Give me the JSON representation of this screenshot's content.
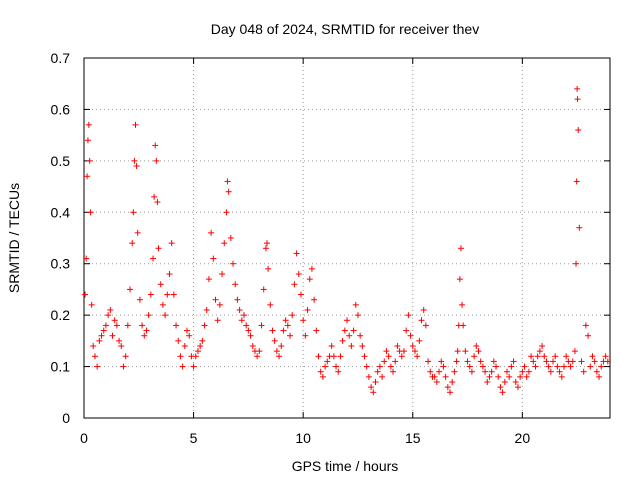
{
  "chart_data": {
    "type": "scatter",
    "title": "Day 048 of 2024, SRMTID for receiver thev",
    "xlabel": "GPS time / hours",
    "ylabel": "SRMTID / TECUs",
    "xlim": [
      0,
      24
    ],
    "ylim": [
      0,
      0.7
    ],
    "xticks": [
      0,
      5,
      10,
      15,
      20
    ],
    "yticks": [
      0,
      0.1,
      0.2,
      0.3,
      0.4,
      0.5,
      0.6,
      0.7
    ],
    "xtick_labels": [
      "0",
      "5",
      "10",
      "15",
      "20"
    ],
    "ytick_labels": [
      "0",
      "0.1",
      "0.2",
      "0.3",
      "0.4",
      "0.5",
      "0.6",
      "0.7"
    ],
    "grid": true,
    "marker": "plus",
    "color": "#ff0000",
    "series": [
      {
        "name": "SRMTID",
        "points": [
          [
            0.05,
            0.24
          ],
          [
            0.1,
            0.31
          ],
          [
            0.14,
            0.47
          ],
          [
            0.18,
            0.54
          ],
          [
            0.22,
            0.57
          ],
          [
            0.26,
            0.5
          ],
          [
            0.3,
            0.4
          ],
          [
            0.35,
            0.22
          ],
          [
            0.42,
            0.14
          ],
          [
            0.5,
            0.12
          ],
          [
            0.6,
            0.1
          ],
          [
            0.7,
            0.15
          ],
          [
            0.8,
            0.16
          ],
          [
            0.9,
            0.17
          ],
          [
            1.0,
            0.18
          ],
          [
            1.1,
            0.2
          ],
          [
            1.2,
            0.21
          ],
          [
            1.3,
            0.16
          ],
          [
            1.4,
            0.19
          ],
          [
            1.5,
            0.18
          ],
          [
            1.6,
            0.15
          ],
          [
            1.7,
            0.14
          ],
          [
            1.8,
            0.1
          ],
          [
            1.9,
            0.12
          ],
          [
            2.0,
            0.18
          ],
          [
            2.1,
            0.25
          ],
          [
            2.2,
            0.34
          ],
          [
            2.25,
            0.4
          ],
          [
            2.3,
            0.5
          ],
          [
            2.35,
            0.57
          ],
          [
            2.4,
            0.49
          ],
          [
            2.45,
            0.36
          ],
          [
            2.55,
            0.23
          ],
          [
            2.65,
            0.18
          ],
          [
            2.75,
            0.16
          ],
          [
            2.85,
            0.17
          ],
          [
            2.95,
            0.2
          ],
          [
            3.05,
            0.24
          ],
          [
            3.15,
            0.31
          ],
          [
            3.2,
            0.43
          ],
          [
            3.25,
            0.53
          ],
          [
            3.3,
            0.5
          ],
          [
            3.35,
            0.42
          ],
          [
            3.4,
            0.33
          ],
          [
            3.5,
            0.26
          ],
          [
            3.6,
            0.22
          ],
          [
            3.7,
            0.2
          ],
          [
            3.8,
            0.24
          ],
          [
            3.9,
            0.28
          ],
          [
            4.0,
            0.34
          ],
          [
            4.1,
            0.24
          ],
          [
            4.2,
            0.18
          ],
          [
            4.3,
            0.15
          ],
          [
            4.4,
            0.12
          ],
          [
            4.5,
            0.1
          ],
          [
            4.6,
            0.14
          ],
          [
            4.7,
            0.17
          ],
          [
            4.8,
            0.16
          ],
          [
            4.9,
            0.12
          ],
          [
            5.0,
            0.1
          ],
          [
            5.1,
            0.12
          ],
          [
            5.2,
            0.13
          ],
          [
            5.3,
            0.14
          ],
          [
            5.4,
            0.15
          ],
          [
            5.5,
            0.18
          ],
          [
            5.6,
            0.21
          ],
          [
            5.7,
            0.27
          ],
          [
            5.8,
            0.36
          ],
          [
            5.9,
            0.31
          ],
          [
            6.0,
            0.23
          ],
          [
            6.1,
            0.19
          ],
          [
            6.2,
            0.22
          ],
          [
            6.3,
            0.28
          ],
          [
            6.4,
            0.34
          ],
          [
            6.5,
            0.4
          ],
          [
            6.55,
            0.46
          ],
          [
            6.6,
            0.44
          ],
          [
            6.7,
            0.35
          ],
          [
            6.8,
            0.3
          ],
          [
            6.9,
            0.26
          ],
          [
            7.0,
            0.23
          ],
          [
            7.1,
            0.21
          ],
          [
            7.2,
            0.19
          ],
          [
            7.3,
            0.2
          ],
          [
            7.4,
            0.18
          ],
          [
            7.5,
            0.17
          ],
          [
            7.6,
            0.16
          ],
          [
            7.7,
            0.14
          ],
          [
            7.8,
            0.13
          ],
          [
            7.9,
            0.12
          ],
          [
            8.0,
            0.13
          ],
          [
            8.1,
            0.18
          ],
          [
            8.2,
            0.25
          ],
          [
            8.3,
            0.33
          ],
          [
            8.35,
            0.34
          ],
          [
            8.4,
            0.29
          ],
          [
            8.5,
            0.22
          ],
          [
            8.6,
            0.17
          ],
          [
            8.7,
            0.15
          ],
          [
            8.8,
            0.13
          ],
          [
            8.9,
            0.12
          ],
          [
            9.0,
            0.14
          ],
          [
            9.1,
            0.17
          ],
          [
            9.2,
            0.19
          ],
          [
            9.3,
            0.18
          ],
          [
            9.4,
            0.16
          ],
          [
            9.5,
            0.2
          ],
          [
            9.6,
            0.26
          ],
          [
            9.7,
            0.32
          ],
          [
            9.8,
            0.28
          ],
          [
            9.9,
            0.24
          ],
          [
            10.0,
            0.19
          ],
          [
            10.1,
            0.16
          ],
          [
            10.2,
            0.21
          ],
          [
            10.3,
            0.27
          ],
          [
            10.4,
            0.29
          ],
          [
            10.5,
            0.23
          ],
          [
            10.6,
            0.17
          ],
          [
            10.7,
            0.12
          ],
          [
            10.8,
            0.09
          ],
          [
            10.9,
            0.08
          ],
          [
            11.0,
            0.1
          ],
          [
            11.1,
            0.11
          ],
          [
            11.2,
            0.12
          ],
          [
            11.3,
            0.14
          ],
          [
            11.4,
            0.12
          ],
          [
            11.5,
            0.1
          ],
          [
            11.6,
            0.09
          ],
          [
            11.7,
            0.12
          ],
          [
            11.8,
            0.15
          ],
          [
            11.9,
            0.17
          ],
          [
            12.0,
            0.19
          ],
          [
            12.1,
            0.16
          ],
          [
            12.2,
            0.14
          ],
          [
            12.3,
            0.17
          ],
          [
            12.4,
            0.22
          ],
          [
            12.5,
            0.2
          ],
          [
            12.6,
            0.16
          ],
          [
            12.7,
            0.14
          ],
          [
            12.8,
            0.12
          ],
          [
            12.9,
            0.1
          ],
          [
            13.0,
            0.08
          ],
          [
            13.1,
            0.06
          ],
          [
            13.2,
            0.05
          ],
          [
            13.3,
            0.07
          ],
          [
            13.4,
            0.09
          ],
          [
            13.5,
            0.1
          ],
          [
            13.6,
            0.08
          ],
          [
            13.7,
            0.11
          ],
          [
            13.8,
            0.13
          ],
          [
            13.9,
            0.12
          ],
          [
            14.0,
            0.1
          ],
          [
            14.1,
            0.09
          ],
          [
            14.2,
            0.11
          ],
          [
            14.3,
            0.14
          ],
          [
            14.4,
            0.13
          ],
          [
            14.5,
            0.12
          ],
          [
            14.6,
            0.13
          ],
          [
            14.7,
            0.17
          ],
          [
            14.8,
            0.2
          ],
          [
            14.9,
            0.16
          ],
          [
            15.0,
            0.14
          ],
          [
            15.1,
            0.13
          ],
          [
            15.2,
            0.12
          ],
          [
            15.3,
            0.15
          ],
          [
            15.4,
            0.19
          ],
          [
            15.5,
            0.21
          ],
          [
            15.6,
            0.18
          ],
          [
            15.7,
            0.11
          ],
          [
            15.8,
            0.09
          ],
          [
            15.9,
            0.08
          ],
          [
            16.0,
            0.08
          ],
          [
            16.1,
            0.07
          ],
          [
            16.2,
            0.09
          ],
          [
            16.3,
            0.11
          ],
          [
            16.4,
            0.1
          ],
          [
            16.5,
            0.08
          ],
          [
            16.6,
            0.06
          ],
          [
            16.7,
            0.05
          ],
          [
            16.8,
            0.07
          ],
          [
            16.9,
            0.09
          ],
          [
            17.0,
            0.11
          ],
          [
            17.05,
            0.13
          ],
          [
            17.1,
            0.18
          ],
          [
            17.15,
            0.27
          ],
          [
            17.2,
            0.33
          ],
          [
            17.25,
            0.22
          ],
          [
            17.3,
            0.18
          ],
          [
            17.4,
            0.13
          ],
          [
            17.5,
            0.11
          ],
          [
            17.6,
            0.1
          ],
          [
            17.7,
            0.09
          ],
          [
            17.8,
            0.12
          ],
          [
            17.9,
            0.14
          ],
          [
            18.0,
            0.13
          ],
          [
            18.1,
            0.11
          ],
          [
            18.2,
            0.1
          ],
          [
            18.3,
            0.09
          ],
          [
            18.4,
            0.07
          ],
          [
            18.5,
            0.08
          ],
          [
            18.6,
            0.09
          ],
          [
            18.7,
            0.11
          ],
          [
            18.8,
            0.1
          ],
          [
            18.9,
            0.08
          ],
          [
            19.0,
            0.06
          ],
          [
            19.1,
            0.05
          ],
          [
            19.2,
            0.07
          ],
          [
            19.3,
            0.09
          ],
          [
            19.4,
            0.08
          ],
          [
            19.5,
            0.1
          ],
          [
            19.6,
            0.11
          ],
          [
            19.7,
            0.07
          ],
          [
            19.8,
            0.06
          ],
          [
            19.9,
            0.08
          ],
          [
            20.0,
            0.09
          ],
          [
            20.1,
            0.1
          ],
          [
            20.2,
            0.08
          ],
          [
            20.3,
            0.09
          ],
          [
            20.4,
            0.12
          ],
          [
            20.5,
            0.11
          ],
          [
            20.6,
            0.1
          ],
          [
            20.7,
            0.12
          ],
          [
            20.8,
            0.13
          ],
          [
            20.9,
            0.14
          ],
          [
            21.0,
            0.12
          ],
          [
            21.1,
            0.11
          ],
          [
            21.2,
            0.1
          ],
          [
            21.3,
            0.09
          ],
          [
            21.4,
            0.11
          ],
          [
            21.5,
            0.12
          ],
          [
            21.6,
            0.1
          ],
          [
            21.7,
            0.09
          ],
          [
            21.8,
            0.08
          ],
          [
            21.9,
            0.1
          ],
          [
            22.0,
            0.12
          ],
          [
            22.1,
            0.11
          ],
          [
            22.2,
            0.1
          ],
          [
            22.3,
            0.11
          ],
          [
            22.4,
            0.13
          ],
          [
            22.45,
            0.3
          ],
          [
            22.48,
            0.46
          ],
          [
            22.5,
            0.64
          ],
          [
            22.52,
            0.62
          ],
          [
            22.55,
            0.56
          ],
          [
            22.6,
            0.37
          ],
          [
            22.7,
            0.11
          ],
          [
            22.8,
            0.09
          ],
          [
            22.9,
            0.18
          ],
          [
            23.0,
            0.16
          ],
          [
            23.1,
            0.1
          ],
          [
            23.2,
            0.12
          ],
          [
            23.3,
            0.11
          ],
          [
            23.4,
            0.09
          ],
          [
            23.5,
            0.08
          ],
          [
            23.6,
            0.1
          ],
          [
            23.7,
            0.11
          ],
          [
            23.8,
            0.12
          ],
          [
            23.9,
            0.11
          ]
        ]
      }
    ]
  }
}
